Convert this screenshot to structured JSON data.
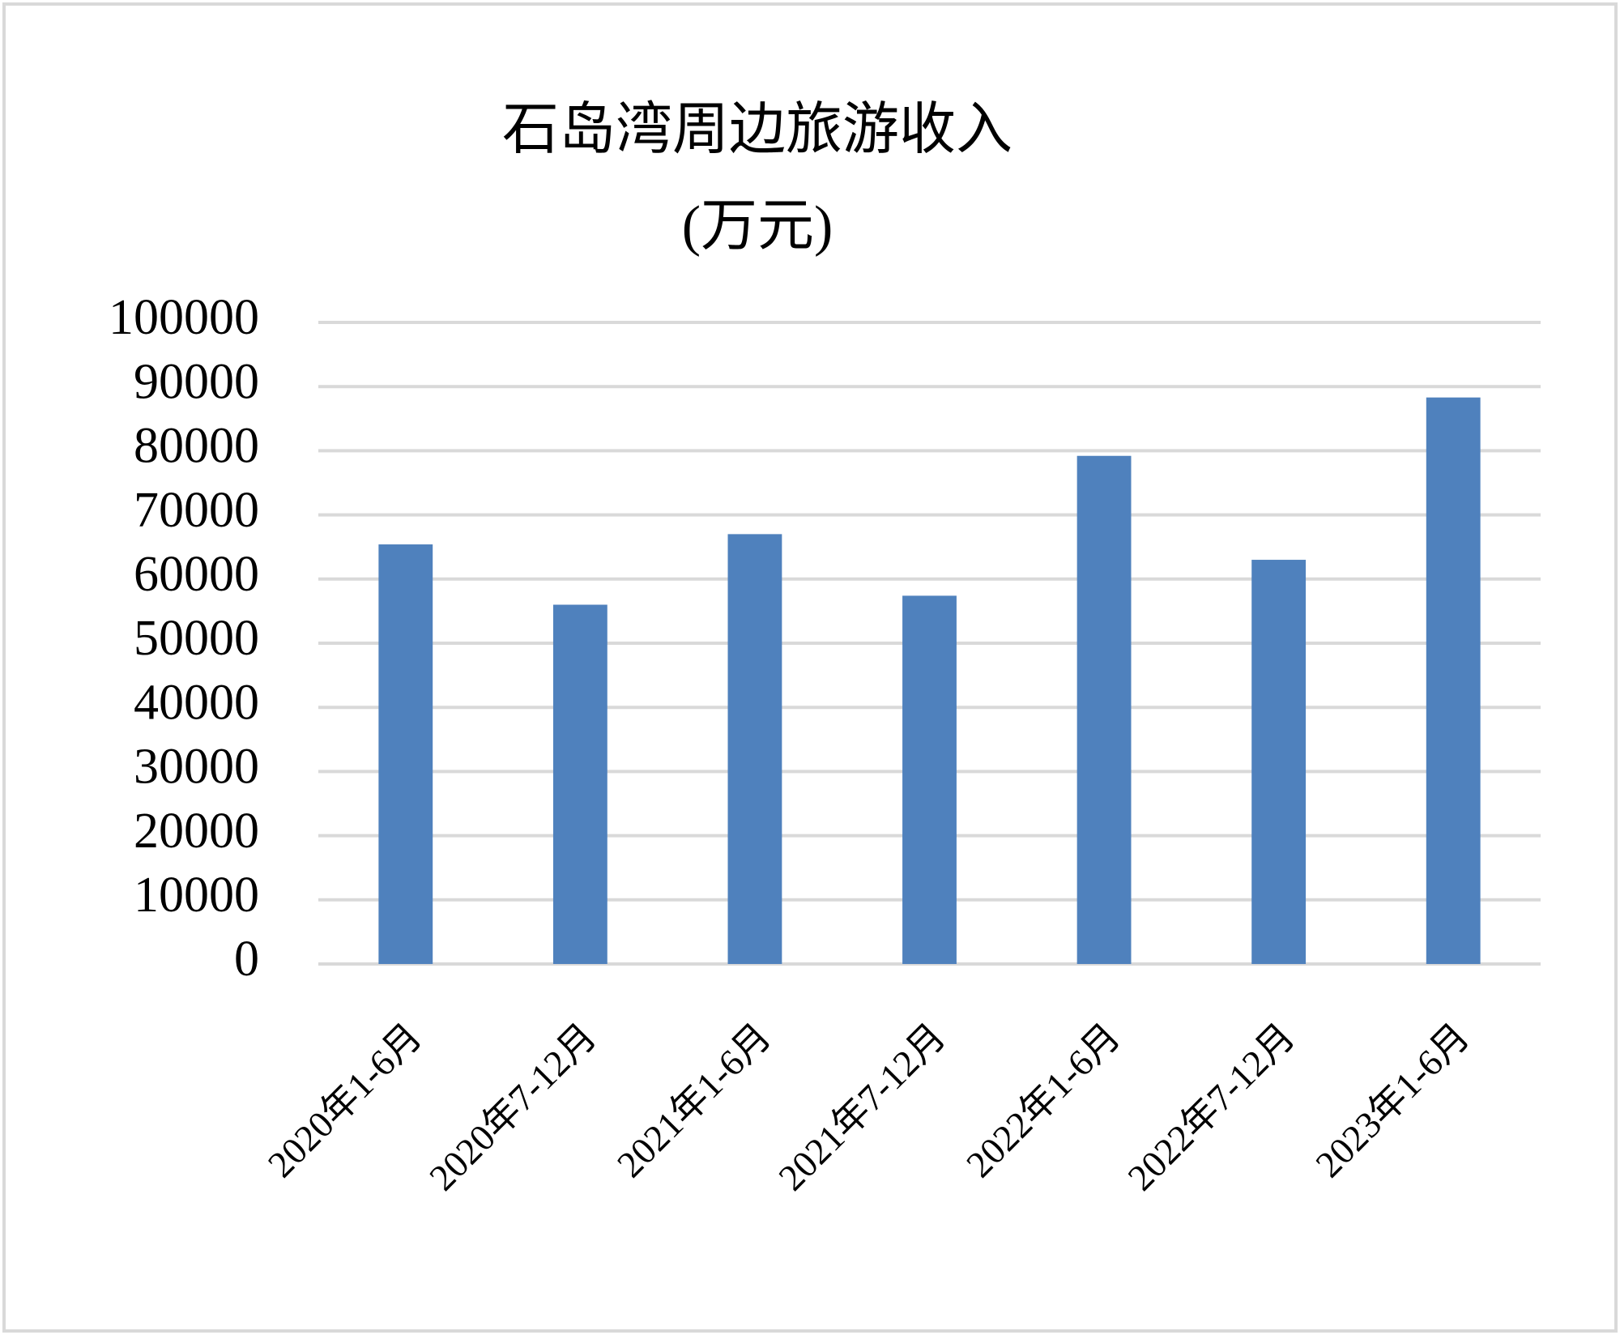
{
  "chart_data": {
    "type": "bar",
    "title": "石岛湾周边旅游收入",
    "subtitle": "(万元)",
    "categories": [
      "2020年1-6月",
      "2020年7-12月",
      "2021年1-6月",
      "2021年7-12月",
      "2022年1-6月",
      "2022年7-12月",
      "2023年1-6月"
    ],
    "values": [
      65400,
      56000,
      67000,
      57400,
      79200,
      63000,
      88300
    ],
    "color": "#4f81bd",
    "ylim": [
      0,
      100000
    ],
    "yticks": [
      0,
      10000,
      20000,
      30000,
      40000,
      50000,
      60000,
      70000,
      80000,
      90000,
      100000
    ],
    "grid": true
  }
}
